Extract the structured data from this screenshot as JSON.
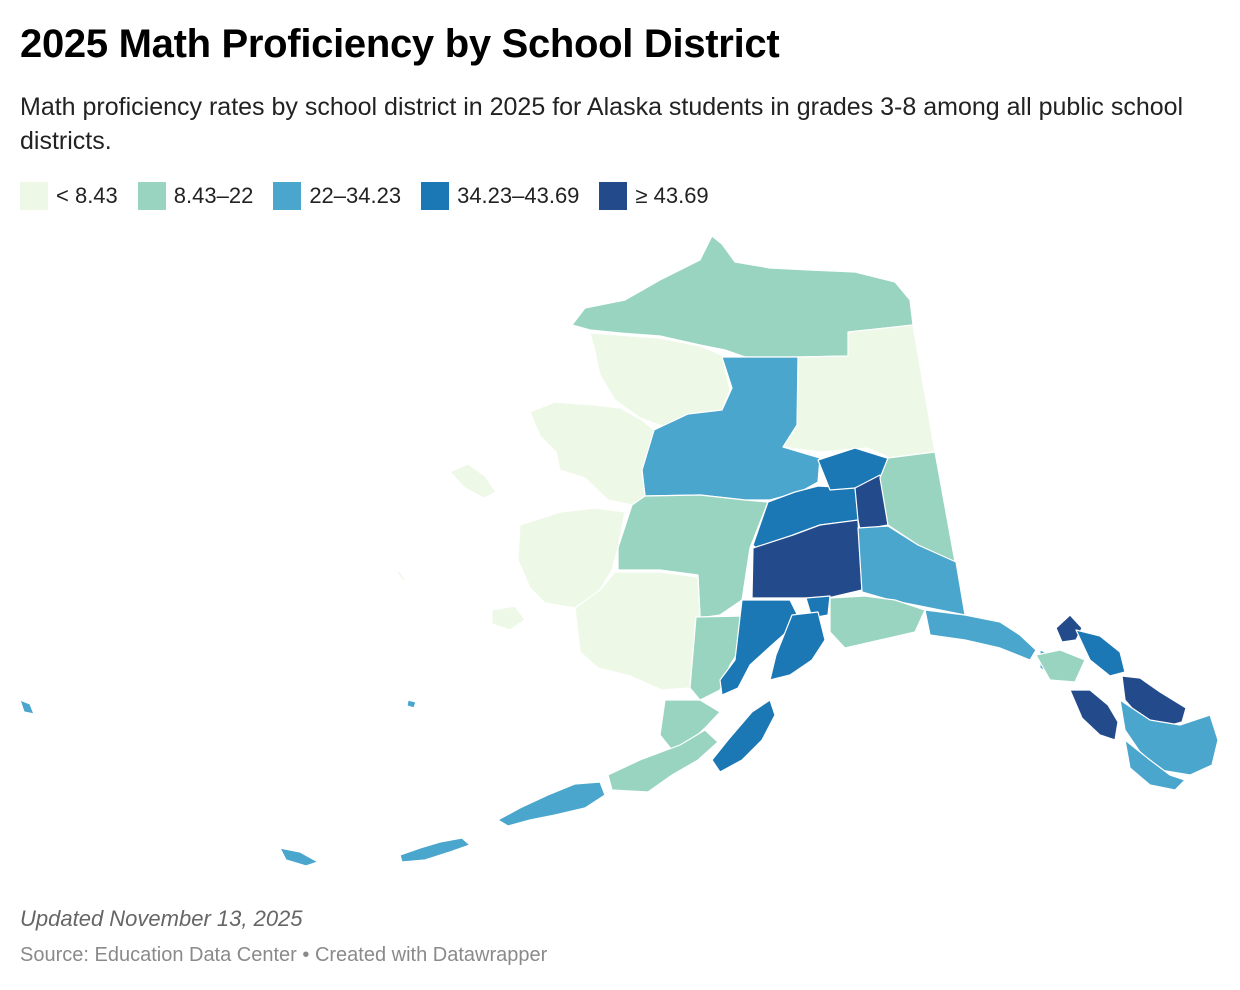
{
  "header": {
    "title": "2025 Math Proficiency by School District",
    "subtitle": "Math proficiency rates by school district in 2025 for Alaska students in grades 3-8 among all public school districts."
  },
  "legend": {
    "bins": [
      {
        "label": "< 8.43",
        "color": "#eef8e6"
      },
      {
        "label": "8.43–22",
        "color": "#98d4c0"
      },
      {
        "label": "22–34.23",
        "color": "#4aa6cc"
      },
      {
        "label": "34.23–43.69",
        "color": "#1b78b4"
      },
      {
        "label": "≥ 43.69",
        "color": "#234b8c"
      }
    ]
  },
  "map": {
    "region": "Alaska",
    "unit": "school district",
    "border_color": "#ffffff"
  },
  "footer": {
    "updated": "Updated November 13, 2025",
    "source": "Source: Education Data Center • Created with Datawrapper"
  }
}
